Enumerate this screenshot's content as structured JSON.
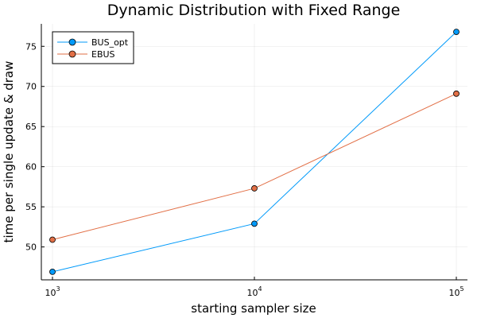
{
  "chart_data": {
    "type": "line",
    "title": "Dynamic Distribution with Fixed Range",
    "xlabel": "starting sampler size",
    "ylabel": "time per single update & draw",
    "x": [
      1000,
      10000,
      100000
    ],
    "x_scale": "log",
    "x_ticks": [
      {
        "base": "10",
        "exp": "3"
      },
      {
        "base": "10",
        "exp": "4"
      },
      {
        "base": "10",
        "exp": "5"
      }
    ],
    "y_ticks": [
      50,
      55,
      60,
      65,
      70,
      75
    ],
    "ylim": [
      45.9,
      77.8
    ],
    "grid": true,
    "legend_position": "top-left",
    "series": [
      {
        "name": "BUS_opt",
        "color": "#009AFA",
        "values": [
          46.9,
          52.9,
          76.8
        ]
      },
      {
        "name": "EBUS",
        "color": "#E26F46",
        "values": [
          50.9,
          57.3,
          69.1
        ]
      }
    ]
  }
}
